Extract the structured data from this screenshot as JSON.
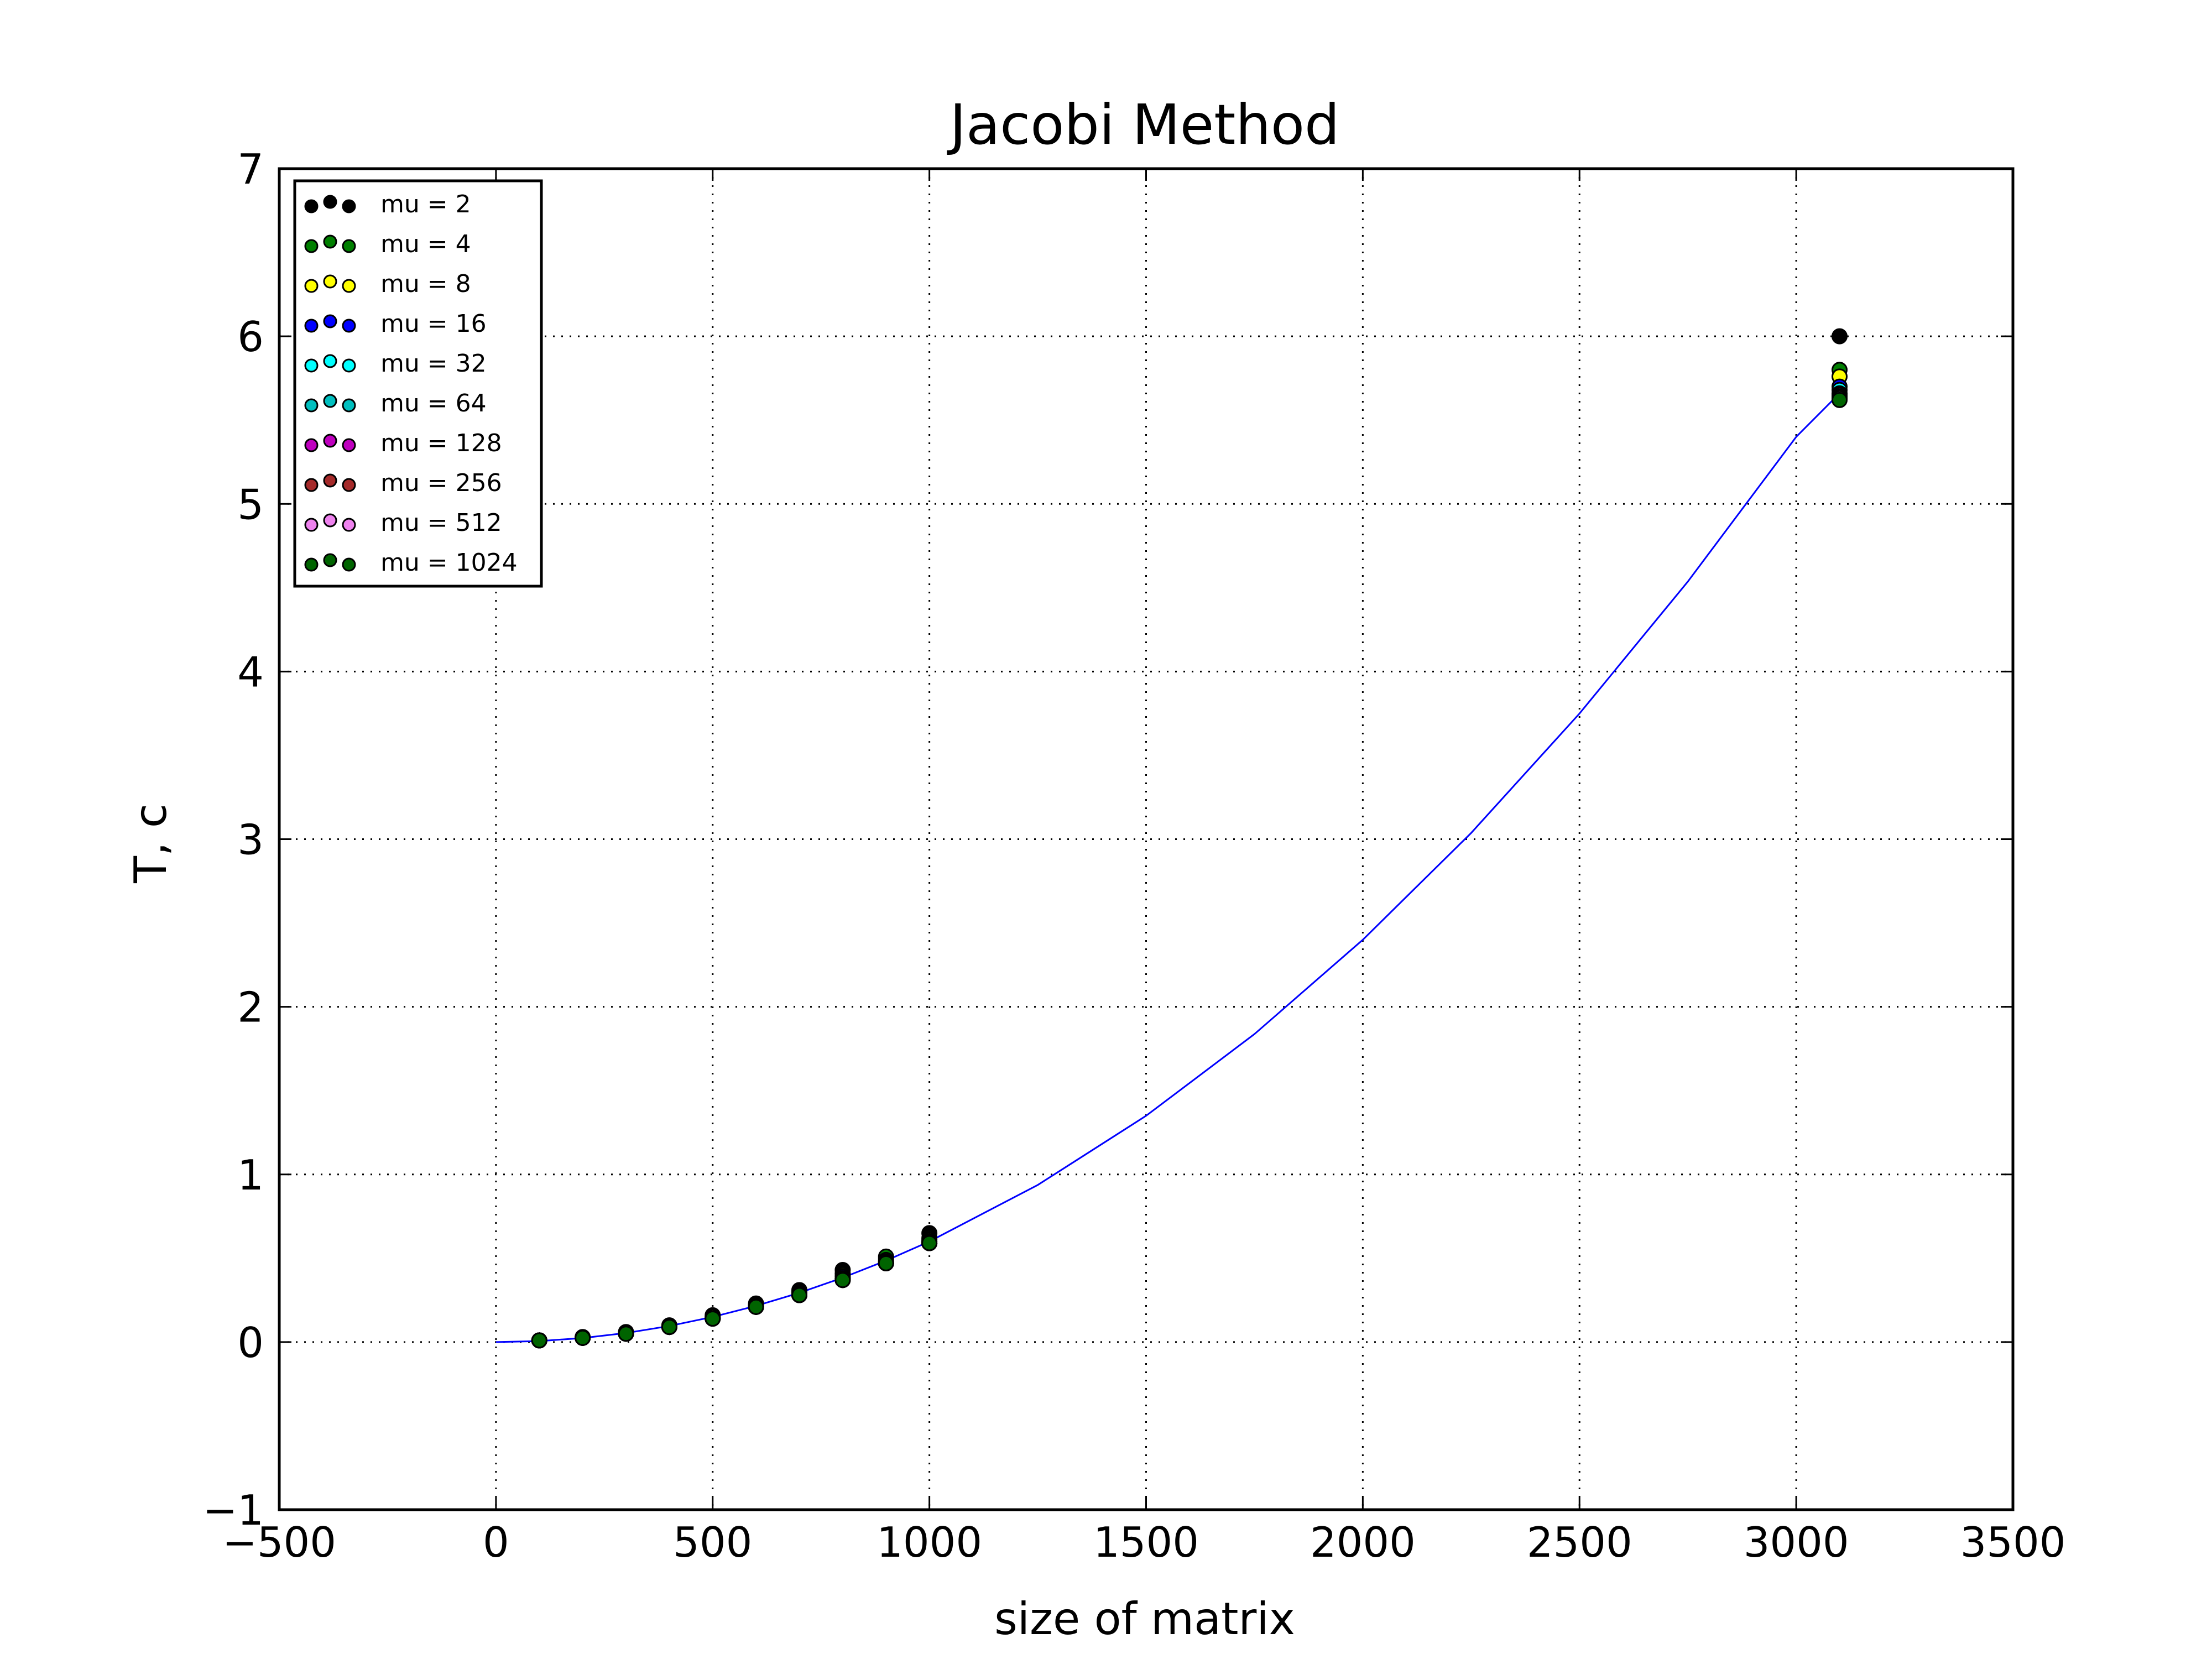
{
  "chart_data": {
    "type": "scatter",
    "title": "Jacobi Method",
    "xlabel": "size of matrix",
    "ylabel": "T, c",
    "xlim": [
      -500,
      3500
    ],
    "ylim": [
      -1,
      7
    ],
    "xticks": [
      -500,
      0,
      500,
      1000,
      1500,
      2000,
      2500,
      3000,
      3500
    ],
    "yticks": [
      -1,
      0,
      1,
      2,
      3,
      4,
      5,
      6,
      7
    ],
    "xtick_labels": [
      "−500",
      "0",
      "500",
      "1000",
      "1500",
      "2000",
      "2500",
      "3000",
      "3500"
    ],
    "ytick_labels": [
      "−1",
      "0",
      "1",
      "2",
      "3",
      "4",
      "5",
      "6",
      "7"
    ],
    "grid": true,
    "legend_position": "top-left",
    "fit_line": {
      "color": "#0000ff",
      "x": [
        0,
        100,
        200,
        300,
        400,
        500,
        600,
        700,
        800,
        900,
        1000,
        1250,
        1500,
        1750,
        2000,
        2250,
        2500,
        2750,
        3000,
        3100
      ],
      "y": [
        0,
        0.006,
        0.024,
        0.054,
        0.096,
        0.15,
        0.216,
        0.294,
        0.384,
        0.486,
        0.6,
        0.937,
        1.35,
        1.837,
        2.4,
        3.037,
        3.75,
        4.537,
        5.4,
        5.66
      ]
    },
    "series": [
      {
        "name": "mu = 2",
        "color": "#000000",
        "x": [
          100,
          200,
          300,
          400,
          500,
          600,
          700,
          800,
          900,
          1000,
          3100
        ],
        "y": [
          0.01,
          0.03,
          0.06,
          0.1,
          0.16,
          0.23,
          0.31,
          0.43,
          0.5,
          0.65,
          6.0
        ]
      },
      {
        "name": "mu = 4",
        "color": "#007f00",
        "x": [
          100,
          200,
          300,
          400,
          500,
          600,
          700,
          800,
          900,
          1000,
          3100
        ],
        "y": [
          0.01,
          0.025,
          0.055,
          0.095,
          0.15,
          0.22,
          0.3,
          0.41,
          0.51,
          0.62,
          5.8
        ]
      },
      {
        "name": "mu = 8",
        "color": "#ffff00",
        "x": [
          100,
          200,
          300,
          400,
          500,
          600,
          700,
          800,
          900,
          1000,
          3100
        ],
        "y": [
          0.01,
          0.025,
          0.055,
          0.095,
          0.15,
          0.22,
          0.29,
          0.4,
          0.49,
          0.61,
          5.76
        ]
      },
      {
        "name": "mu = 16",
        "color": "#0000ff",
        "x": [
          100,
          200,
          300,
          400,
          500,
          600,
          700,
          800,
          900,
          1000,
          3100
        ],
        "y": [
          0.01,
          0.025,
          0.05,
          0.09,
          0.14,
          0.21,
          0.29,
          0.39,
          0.48,
          0.6,
          5.7
        ]
      },
      {
        "name": "mu = 32",
        "color": "#00ffff",
        "x": [
          100,
          200,
          300,
          400,
          500,
          600,
          700,
          800,
          900,
          1000,
          3100
        ],
        "y": [
          0.01,
          0.025,
          0.05,
          0.09,
          0.14,
          0.21,
          0.29,
          0.38,
          0.48,
          0.6,
          5.68
        ]
      },
      {
        "name": "mu = 64",
        "color": "#00bfbf",
        "x": [
          100,
          200,
          300,
          400,
          500,
          600,
          700,
          800,
          900,
          1000,
          3100
        ],
        "y": [
          0.01,
          0.025,
          0.05,
          0.09,
          0.14,
          0.21,
          0.28,
          0.38,
          0.47,
          0.59,
          5.66
        ]
      },
      {
        "name": "mu = 128",
        "color": "#bf00bf",
        "x": [
          100,
          200,
          300,
          400,
          500,
          600,
          700,
          800,
          900,
          1000,
          3100
        ],
        "y": [
          0.01,
          0.025,
          0.05,
          0.09,
          0.14,
          0.21,
          0.28,
          0.38,
          0.47,
          0.59,
          5.65
        ]
      },
      {
        "name": "mu = 256",
        "color": "#a52a2a",
        "x": [
          100,
          200,
          300,
          400,
          500,
          600,
          700,
          800,
          900,
          1000,
          3100
        ],
        "y": [
          0.01,
          0.025,
          0.05,
          0.09,
          0.14,
          0.21,
          0.28,
          0.37,
          0.47,
          0.59,
          5.64
        ]
      },
      {
        "name": "mu = 512",
        "color": "#ee82ee",
        "x": [
          100,
          200,
          300,
          400,
          500,
          600,
          700,
          800,
          900,
          1000,
          3100
        ],
        "y": [
          0.01,
          0.025,
          0.05,
          0.09,
          0.14,
          0.21,
          0.28,
          0.37,
          0.47,
          0.59,
          5.63
        ]
      },
      {
        "name": "mu = 1024",
        "color": "#006400",
        "x": [
          100,
          200,
          300,
          400,
          500,
          600,
          700,
          800,
          900,
          1000,
          3100
        ],
        "y": [
          0.01,
          0.025,
          0.05,
          0.09,
          0.14,
          0.21,
          0.28,
          0.37,
          0.47,
          0.59,
          5.62
        ]
      }
    ]
  }
}
